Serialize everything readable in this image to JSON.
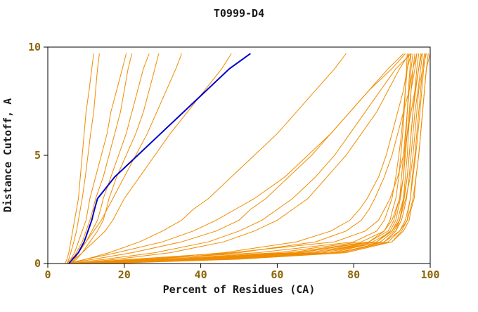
{
  "chart_data": {
    "type": "line",
    "title": "T0999-D4",
    "xlabel": "Percent of Residues (CA)",
    "ylabel": "Distance Cutoff, A",
    "xlim": [
      0,
      100
    ],
    "ylim": [
      0,
      10
    ],
    "x_ticks": [
      0,
      20,
      40,
      60,
      80,
      100
    ],
    "y_ticks": [
      0,
      5,
      10
    ],
    "grid": false,
    "legend": false,
    "colors": {
      "model": "#f08c00",
      "highlight": "#0000cc",
      "frame": "#000000",
      "tick_text": "#8b6508",
      "title_text": "#1a1a1a"
    },
    "y_levels": [
      0,
      0.2,
      0.5,
      1,
      1.5,
      2,
      2.5,
      3,
      4,
      5,
      6,
      7,
      8,
      9,
      9.7
    ],
    "highlight_series": {
      "name": "highlighted-model",
      "x": [
        5.5,
        6.5,
        8,
        9.5,
        10.5,
        11.5,
        12.2,
        13,
        17.5,
        23.5,
        29.5,
        35.5,
        41.5,
        47.5,
        53
      ]
    },
    "model_series": [
      [
        4.5,
        5,
        5.5,
        6,
        6.5,
        7,
        7.5,
        8,
        8.5,
        9,
        9.5,
        10,
        10.8,
        11.5,
        12
      ],
      [
        5,
        5.5,
        6,
        6.8,
        7.5,
        8,
        8.5,
        9,
        9.8,
        10.5,
        11.2,
        12,
        12.5,
        13,
        13.5
      ],
      [
        5,
        6,
        7,
        8,
        9,
        10,
        10.5,
        11,
        12.5,
        14,
        15.5,
        16.5,
        18,
        19.5,
        20.5
      ],
      [
        5.5,
        6.5,
        7.5,
        9,
        10,
        11,
        11.8,
        12.5,
        14.5,
        16,
        17.5,
        19,
        20,
        21,
        22
      ],
      [
        6,
        7,
        8,
        10,
        11.5,
        13,
        13.8,
        14.5,
        16.5,
        18.5,
        20.5,
        22,
        23.5,
        25,
        26.5
      ],
      [
        6,
        7.5,
        9,
        11,
        13,
        14.5,
        15.3,
        16,
        18,
        20.5,
        23,
        25,
        26.5,
        28,
        29
      ],
      [
        5,
        6,
        8,
        10,
        12,
        14,
        15.5,
        17,
        20,
        23,
        26,
        28.5,
        31,
        33.5,
        35
      ],
      [
        6,
        7,
        9,
        12,
        15,
        17,
        18.5,
        20,
        24,
        28,
        32,
        36.5,
        41,
        45.5,
        48
      ],
      [
        6,
        10,
        16,
        24,
        30,
        35,
        38,
        42,
        48,
        54,
        60,
        65,
        70,
        75,
        78
      ],
      [
        5,
        10,
        18,
        30,
        38,
        44,
        49,
        54,
        62,
        68,
        74,
        79,
        84,
        89,
        93
      ],
      [
        5,
        12,
        22,
        35,
        44,
        50,
        53,
        57,
        63,
        69,
        74,
        79,
        84,
        90,
        93.5
      ],
      [
        7,
        18,
        32,
        46,
        54,
        60,
        64,
        68,
        73,
        78,
        82,
        86,
        89,
        92,
        94.5
      ],
      [
        6,
        15,
        28,
        42,
        50,
        56,
        60,
        64,
        70,
        75,
        79,
        83,
        87,
        91,
        95
      ],
      [
        8,
        28,
        50,
        70,
        78,
        82,
        84,
        85.5,
        88,
        90,
        91.5,
        93,
        94.5,
        95.5,
        96.5
      ],
      [
        7,
        26,
        46,
        65,
        74,
        79,
        81.5,
        83.5,
        86.5,
        88.5,
        90,
        91.5,
        93,
        94,
        95
      ],
      [
        6,
        25,
        55,
        80,
        86,
        88,
        89,
        90,
        91,
        91.8,
        92.5,
        93,
        93.5,
        94,
        94.5
      ],
      [
        9,
        36,
        66,
        84,
        88,
        89.5,
        90.2,
        91,
        91.8,
        92.3,
        92.8,
        93.2,
        93.5,
        93.8,
        94
      ],
      [
        10,
        40,
        70,
        86,
        89.5,
        91,
        91.6,
        92.2,
        93,
        93.3,
        93.7,
        94,
        94.3,
        94.7,
        95
      ],
      [
        8,
        33,
        63,
        84,
        89,
        90.5,
        91.2,
        92,
        92.5,
        93,
        93.5,
        94,
        94.5,
        95,
        95.5
      ],
      [
        13,
        47,
        76,
        88,
        91,
        92,
        92.5,
        93,
        93.5,
        94,
        94.3,
        94.7,
        95,
        95.5,
        96
      ],
      [
        7,
        30,
        60,
        82,
        88,
        90,
        91,
        92,
        93,
        93.5,
        94,
        94.5,
        95,
        96,
        96.5
      ],
      [
        11,
        44,
        74,
        87,
        90.5,
        92,
        92.6,
        93.2,
        94,
        94.5,
        95,
        95.5,
        96,
        96.5,
        97
      ],
      [
        9,
        38,
        68,
        86,
        90,
        91.5,
        92.2,
        93,
        94,
        94.5,
        95,
        95.5,
        96.2,
        97,
        97.5
      ],
      [
        10,
        42,
        72,
        88,
        91,
        92.5,
        93.2,
        93.8,
        94.5,
        95,
        95.5,
        96,
        96.8,
        97.5,
        98
      ],
      [
        15,
        50,
        78,
        90,
        92.5,
        94,
        94.3,
        94.8,
        95.3,
        96,
        96.5,
        97,
        97.5,
        98,
        98.5
      ],
      [
        8,
        35,
        65,
        85,
        90,
        92,
        92.8,
        93.6,
        94.8,
        95.5,
        96,
        96.5,
        97,
        98,
        99
      ],
      [
        12,
        45,
        75,
        90,
        93,
        94.5,
        95,
        95.8,
        96.3,
        97,
        97.5,
        98,
        98.5,
        99,
        99.5
      ],
      [
        10,
        40,
        70,
        88,
        92,
        94,
        94.8,
        95.5,
        96.3,
        97,
        97.5,
        98,
        98.5,
        99,
        100
      ],
      [
        14,
        48,
        77,
        89,
        92,
        93.5,
        94.2,
        94.8,
        95.5,
        96.2,
        96.8,
        97.3,
        97.8,
        98.3,
        98.8
      ],
      [
        6,
        22,
        48,
        75,
        83,
        86.5,
        88,
        89.5,
        91.5,
        93,
        94,
        95,
        96,
        97,
        97.8
      ]
    ]
  }
}
